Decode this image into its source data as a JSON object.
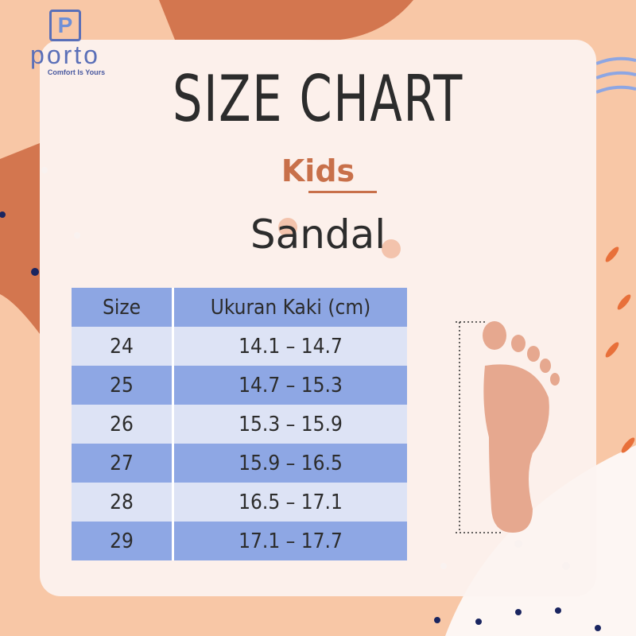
{
  "brand": {
    "logo_letter": "P",
    "name": "porto",
    "tagline": "Comfort Is Yours"
  },
  "title": "SIZE CHART",
  "category": "Kids",
  "product": "Sandal",
  "colors": {
    "background": "#f8c7a6",
    "accent_orange": "#c8704a",
    "table_header": "#8da6e3",
    "row_light": "#dde3f5",
    "row_dark": "#8ea7e4",
    "brand_blue": "#5a6fb8"
  },
  "table": {
    "headers": [
      "Size",
      "Ukuran Kaki (cm)"
    ],
    "rows": [
      [
        "24",
        "14.1 – 14.7"
      ],
      [
        "25",
        "14.7 – 15.3"
      ],
      [
        "26",
        "15.3 – 15.9"
      ],
      [
        "27",
        "15.9 – 16.5"
      ],
      [
        "28",
        "16.5 – 17.1"
      ],
      [
        "29",
        "17.1 – 17.7"
      ]
    ]
  },
  "illustration": {
    "icon": "foot-length-icon"
  }
}
